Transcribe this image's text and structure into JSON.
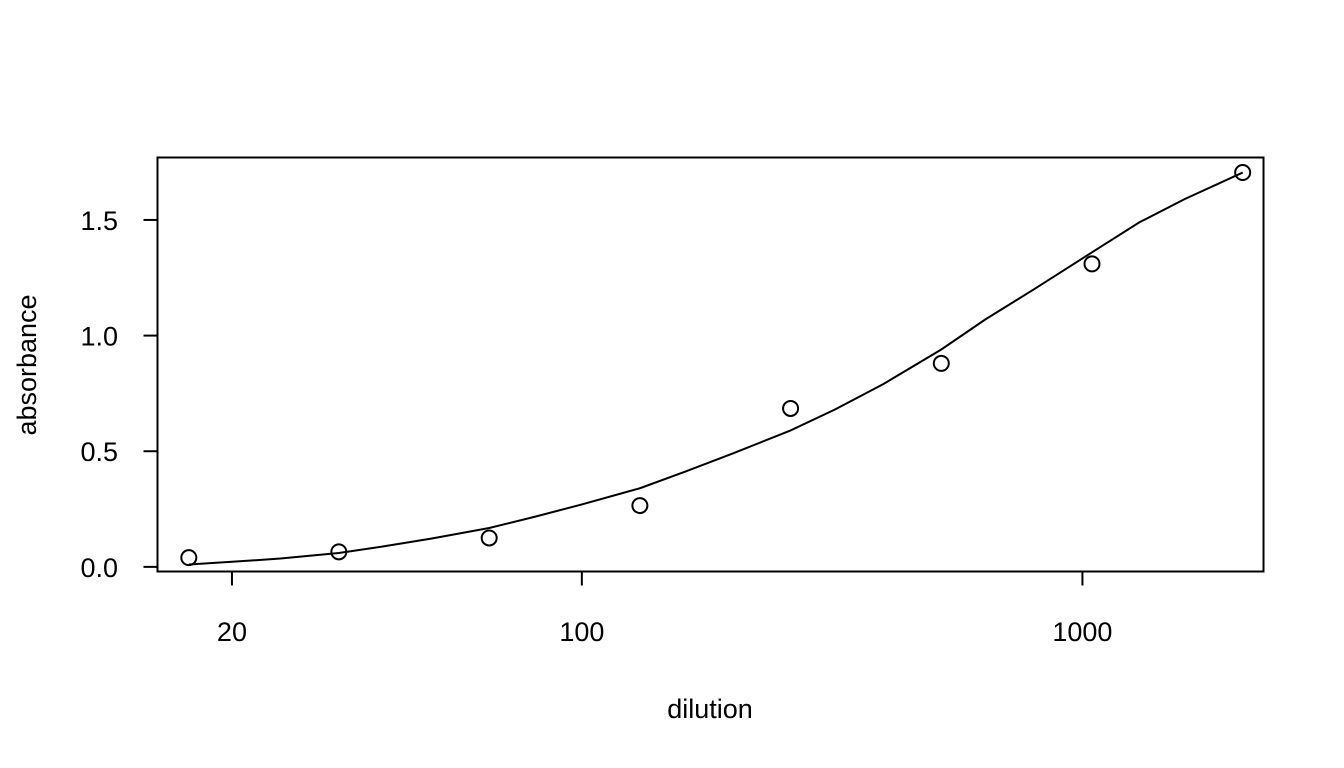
{
  "chart_data": {
    "type": "scatter",
    "xlabel": "dilution",
    "ylabel": "absorbance",
    "x_scale": "log",
    "xlim": [
      14.2,
      2300
    ],
    "ylim": [
      -0.02,
      1.77
    ],
    "x_ticks": [
      {
        "value": 20,
        "label": "20"
      },
      {
        "value": 100,
        "label": "100"
      },
      {
        "value": 1000,
        "label": "1000"
      }
    ],
    "y_ticks": [
      {
        "value": 0.0,
        "label": "0.0"
      },
      {
        "value": 0.5,
        "label": "0.5"
      },
      {
        "value": 1.0,
        "label": "1.0"
      },
      {
        "value": 1.5,
        "label": "1.5"
      }
    ],
    "grid": false,
    "legend": "none",
    "series": [
      {
        "type": "scatter",
        "marker": "open-circle",
        "x": [
          16.4,
          32.7,
          65.3,
          130.6,
          261.2,
          522.5,
          1045,
          2090
        ],
        "y": [
          0.04,
          0.065,
          0.125,
          0.265,
          0.685,
          0.88,
          1.31,
          1.705
        ]
      },
      {
        "type": "line",
        "x": [
          16.4,
          20,
          25,
          32.7,
          40,
          50,
          65.3,
          80,
          100,
          130.6,
          160,
          200,
          261.2,
          320,
          400,
          522.5,
          640,
          800,
          1045,
          1300,
          1600,
          2090
        ],
        "y": [
          0.01,
          0.022,
          0.036,
          0.06,
          0.088,
          0.122,
          0.168,
          0.215,
          0.27,
          0.34,
          0.41,
          0.49,
          0.59,
          0.68,
          0.79,
          0.94,
          1.07,
          1.2,
          1.36,
          1.49,
          1.59,
          1.705
        ]
      }
    ]
  }
}
